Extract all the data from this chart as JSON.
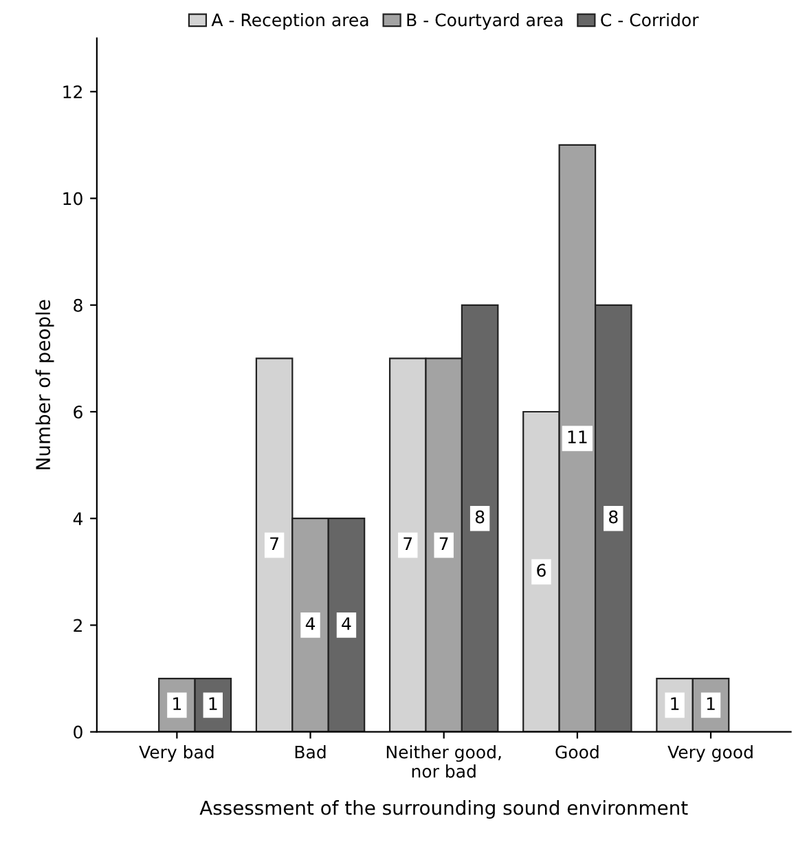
{
  "chart_data": {
    "type": "bar",
    "xlabel": "Assessment of the surrounding sound environment",
    "ylabel": "Number of people",
    "categories": [
      "Very bad",
      "Bad",
      "Neither good,\nnor bad",
      "Good",
      "Very good"
    ],
    "series": [
      {
        "name": "A - Reception area",
        "color": "#d3d3d3",
        "values": [
          null,
          7,
          7,
          6,
          1
        ]
      },
      {
        "name": "B - Courtyard area",
        "color": "#a3a3a3",
        "values": [
          1,
          4,
          7,
          11,
          1
        ]
      },
      {
        "name": "C - Corridor",
        "color": "#666666",
        "values": [
          1,
          4,
          8,
          8,
          null
        ]
      }
    ],
    "ylim": [
      0,
      13
    ],
    "yticks": [
      0,
      2,
      4,
      6,
      8,
      10,
      12
    ],
    "grid": false,
    "legend": "top",
    "data_labels": true
  }
}
